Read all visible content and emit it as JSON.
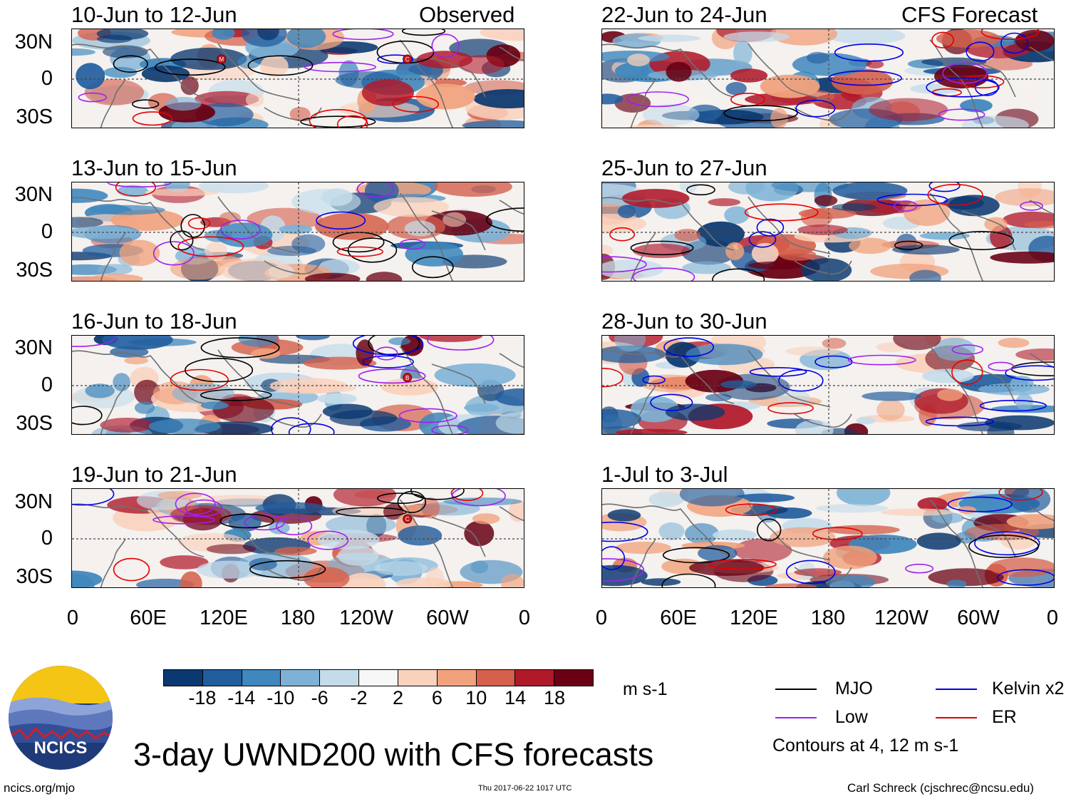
{
  "title": "3-day UWND200 with CFS forecasts",
  "units": "m s-1",
  "contour_note": "Contours at 4, 12 m s-1",
  "site_url": "ncics.org/mjo",
  "timestamp": "Thu 2017-06-22 1017 UTC",
  "author": "Carl Schreck (cjschrec@ncsu.edu)",
  "logo_text": "NCICS",
  "column_headers": {
    "left": "Observed",
    "right": "CFS Forecast"
  },
  "lat_labels": [
    "30N",
    "0",
    "30S"
  ],
  "lon_labels": [
    "0",
    "60E",
    "120E",
    "180",
    "120W",
    "60W",
    "0"
  ],
  "panels": [
    {
      "id": "p1",
      "period": "10-Jun to 12-Jun",
      "source": "observed",
      "storm_markers": [
        "M",
        "C"
      ]
    },
    {
      "id": "p2",
      "period": "13-Jun to 15-Jun",
      "source": "observed",
      "storm_markers": []
    },
    {
      "id": "p3",
      "period": "16-Jun to 18-Jun",
      "source": "observed",
      "storm_markers": [
        "B"
      ]
    },
    {
      "id": "p4",
      "period": "19-Jun to 21-Jun",
      "source": "observed",
      "storm_markers": [
        "C"
      ]
    },
    {
      "id": "p5",
      "period": "22-Jun to 24-Jun",
      "source": "forecast",
      "storm_markers": []
    },
    {
      "id": "p6",
      "period": "25-Jun to 27-Jun",
      "source": "forecast",
      "storm_markers": []
    },
    {
      "id": "p7",
      "period": "28-Jun to 30-Jun",
      "source": "forecast",
      "storm_markers": []
    },
    {
      "id": "p8",
      "period": "1-Jul to 3-Jul",
      "source": "forecast",
      "storm_markers": []
    }
  ],
  "colorbar": {
    "ticks": [
      "-18",
      "-14",
      "-10",
      "-6",
      "-2",
      "2",
      "6",
      "10",
      "14",
      "18"
    ],
    "colors": [
      "#0b3870",
      "#225d9e",
      "#3f87bd",
      "#7db2d6",
      "#c4dcea",
      "#f7f7f7",
      "#fad1bc",
      "#f1a27d",
      "#d5604c",
      "#b0192a",
      "#690013"
    ]
  },
  "legend": [
    {
      "label": "MJO",
      "color": "#000000"
    },
    {
      "label": "Kelvin x2",
      "color": "#0000e6"
    },
    {
      "label": "Low",
      "color": "#a020f0"
    },
    {
      "label": "ER",
      "color": "#e60000"
    }
  ]
}
